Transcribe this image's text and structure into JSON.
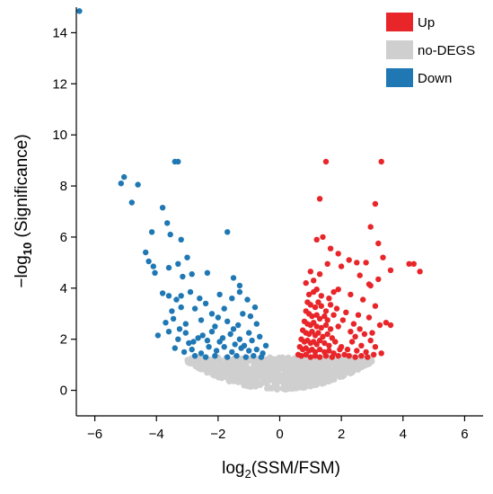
{
  "chart_data": {
    "type": "scatter",
    "title": "",
    "xlabel_main": "log",
    "xlabel_sub": "2",
    "xlabel_rest": "(SSM/FSM)",
    "ylabel_main": "−log",
    "ylabel_sub": "10",
    "ylabel_rest": " (Significance)",
    "xlim": [
      -6.6,
      6.6
    ],
    "ylim": [
      -1.0,
      15.0
    ],
    "xticks": [
      -6,
      -4,
      -2,
      0,
      2,
      4,
      6
    ],
    "xtick_labels": [
      "−6",
      "−4",
      "−2",
      "0",
      "2",
      "4",
      "6"
    ],
    "yticks": [
      0,
      2,
      4,
      6,
      8,
      10,
      12,
      14
    ],
    "ytick_labels": [
      "0",
      "2",
      "4",
      "6",
      "8",
      "10",
      "12",
      "14"
    ],
    "grid": false,
    "legend_position": "top-right",
    "legend": [
      {
        "label": "Up",
        "color": "#e8262a"
      },
      {
        "label": "no-DEGS",
        "color": "#cfcfcf"
      },
      {
        "label": "Down",
        "color": "#1f78b4"
      }
    ],
    "series": [
      {
        "name": "Down",
        "color": "#1f78b4",
        "points": [
          [
            -6.5,
            14.85
          ],
          [
            -5.05,
            8.35
          ],
          [
            -5.15,
            8.1
          ],
          [
            -4.8,
            7.35
          ],
          [
            -4.6,
            8.05
          ],
          [
            -4.15,
            6.2
          ],
          [
            -3.8,
            7.15
          ],
          [
            -3.65,
            6.55
          ],
          [
            -3.4,
            8.95
          ],
          [
            -3.3,
            8.95
          ],
          [
            -3.55,
            6.1
          ],
          [
            -3.2,
            5.9
          ],
          [
            -3.0,
            5.2
          ],
          [
            -4.35,
            5.4
          ],
          [
            -4.25,
            5.05
          ],
          [
            -4.1,
            4.85
          ],
          [
            -4.05,
            4.6
          ],
          [
            -3.6,
            4.8
          ],
          [
            -3.3,
            4.95
          ],
          [
            -2.85,
            4.55
          ],
          [
            -3.15,
            4.45
          ],
          [
            -2.35,
            4.6
          ],
          [
            -1.7,
            6.2
          ],
          [
            -1.5,
            4.4
          ],
          [
            -1.3,
            4.1
          ],
          [
            -3.8,
            3.8
          ],
          [
            -3.6,
            3.7
          ],
          [
            -3.35,
            3.55
          ],
          [
            -3.2,
            3.7
          ],
          [
            -2.9,
            3.85
          ],
          [
            -2.6,
            3.6
          ],
          [
            -2.4,
            3.4
          ],
          [
            -1.95,
            3.75
          ],
          [
            -1.55,
            3.6
          ],
          [
            -1.3,
            3.85
          ],
          [
            -1.05,
            3.55
          ],
          [
            -0.8,
            3.25
          ],
          [
            -3.5,
            3.1
          ],
          [
            -3.2,
            3.25
          ],
          [
            -2.75,
            3.2
          ],
          [
            -2.2,
            3.0
          ],
          [
            -1.8,
            3.2
          ],
          [
            -1.2,
            3.0
          ],
          [
            -0.95,
            2.9
          ],
          [
            -3.7,
            2.65
          ],
          [
            -3.45,
            2.8
          ],
          [
            -3.05,
            2.6
          ],
          [
            -2.55,
            2.75
          ],
          [
            -2.1,
            2.5
          ],
          [
            -1.7,
            2.7
          ],
          [
            -1.35,
            2.55
          ],
          [
            -0.75,
            2.6
          ],
          [
            -3.95,
            2.15
          ],
          [
            -3.6,
            2.3
          ],
          [
            -3.3,
            2.0
          ],
          [
            -3.05,
            2.25
          ],
          [
            -2.8,
            1.9
          ],
          [
            -2.5,
            2.15
          ],
          [
            -2.2,
            2.3
          ],
          [
            -1.95,
            1.9
          ],
          [
            -1.6,
            2.2
          ],
          [
            -1.3,
            2.0
          ],
          [
            -1.0,
            2.25
          ],
          [
            -0.65,
            2.1
          ],
          [
            -3.4,
            1.65
          ],
          [
            -3.1,
            1.5
          ],
          [
            -2.85,
            1.6
          ],
          [
            -2.55,
            1.45
          ],
          [
            -2.3,
            1.7
          ],
          [
            -2.05,
            1.55
          ],
          [
            -1.8,
            1.7
          ],
          [
            -1.55,
            1.5
          ],
          [
            -1.25,
            1.65
          ],
          [
            -1.0,
            1.55
          ],
          [
            -0.75,
            1.6
          ],
          [
            -0.55,
            1.45
          ],
          [
            -2.75,
            1.35
          ],
          [
            -2.4,
            1.3
          ],
          [
            -2.1,
            1.35
          ],
          [
            -1.7,
            1.3
          ],
          [
            -1.4,
            1.35
          ],
          [
            -1.1,
            1.3
          ],
          [
            -0.85,
            1.35
          ],
          [
            -0.6,
            1.3
          ],
          [
            -2.95,
            1.85
          ],
          [
            -2.65,
            2.05
          ],
          [
            -2.35,
            1.95
          ],
          [
            -1.85,
            2.05
          ],
          [
            -1.45,
            1.8
          ],
          [
            -1.15,
            1.75
          ],
          [
            -0.9,
            1.95
          ],
          [
            -0.45,
            1.75
          ],
          [
            -3.25,
            2.4
          ],
          [
            -2.0,
            2.85
          ],
          [
            -1.5,
            2.4
          ]
        ]
      },
      {
        "name": "Up",
        "color": "#e8262a",
        "points": [
          [
            3.3,
            8.95
          ],
          [
            1.5,
            8.95
          ],
          [
            1.3,
            7.5
          ],
          [
            3.1,
            7.3
          ],
          [
            2.95,
            6.4
          ],
          [
            1.4,
            6.0
          ],
          [
            1.2,
            5.9
          ],
          [
            3.2,
            5.75
          ],
          [
            1.65,
            5.55
          ],
          [
            1.9,
            5.35
          ],
          [
            2.25,
            5.1
          ],
          [
            2.5,
            5.0
          ],
          [
            1.55,
            4.95
          ],
          [
            2.0,
            4.85
          ],
          [
            2.8,
            5.0
          ],
          [
            3.35,
            5.2
          ],
          [
            4.2,
            4.95
          ],
          [
            4.35,
            4.95
          ],
          [
            4.55,
            4.65
          ],
          [
            3.6,
            4.7
          ],
          [
            1.0,
            4.65
          ],
          [
            1.3,
            4.55
          ],
          [
            2.6,
            4.5
          ],
          [
            3.2,
            4.35
          ],
          [
            0.85,
            4.2
          ],
          [
            2.9,
            4.15
          ],
          [
            2.95,
            4.1
          ],
          [
            1.1,
            3.85
          ],
          [
            1.6,
            3.6
          ],
          [
            1.9,
            3.95
          ],
          [
            2.3,
            3.75
          ],
          [
            2.7,
            3.55
          ],
          [
            3.1,
            3.3
          ],
          [
            3.45,
            2.65
          ],
          [
            3.6,
            2.55
          ],
          [
            3.25,
            2.55
          ],
          [
            2.9,
            2.85
          ],
          [
            2.55,
            2.95
          ],
          [
            2.15,
            3.05
          ],
          [
            1.85,
            3.2
          ],
          [
            0.9,
            3.45
          ],
          [
            1.0,
            3.35
          ],
          [
            1.15,
            3.25
          ],
          [
            1.25,
            3.45
          ],
          [
            1.35,
            3.3
          ],
          [
            0.85,
            3.1
          ],
          [
            0.95,
            3.0
          ],
          [
            1.05,
            2.9
          ],
          [
            1.2,
            2.95
          ],
          [
            1.3,
            2.8
          ],
          [
            1.45,
            2.9
          ],
          [
            1.55,
            2.75
          ],
          [
            0.8,
            2.7
          ],
          [
            0.9,
            2.6
          ],
          [
            1.0,
            2.55
          ],
          [
            1.1,
            2.65
          ],
          [
            1.2,
            2.5
          ],
          [
            1.35,
            2.45
          ],
          [
            1.5,
            2.55
          ],
          [
            1.65,
            2.4
          ],
          [
            0.75,
            2.35
          ],
          [
            0.85,
            2.25
          ],
          [
            0.95,
            2.2
          ],
          [
            1.05,
            2.3
          ],
          [
            1.15,
            2.15
          ],
          [
            1.25,
            2.25
          ],
          [
            1.4,
            2.1
          ],
          [
            1.55,
            2.2
          ],
          [
            1.7,
            2.05
          ],
          [
            0.7,
            2.0
          ],
          [
            0.8,
            1.9
          ],
          [
            0.9,
            1.95
          ],
          [
            1.0,
            1.85
          ],
          [
            1.1,
            1.9
          ],
          [
            1.2,
            1.8
          ],
          [
            1.3,
            1.95
          ],
          [
            1.45,
            1.85
          ],
          [
            1.6,
            1.75
          ],
          [
            1.8,
            1.9
          ],
          [
            0.65,
            1.7
          ],
          [
            0.75,
            1.6
          ],
          [
            0.85,
            1.65
          ],
          [
            0.95,
            1.55
          ],
          [
            1.05,
            1.6
          ],
          [
            1.15,
            1.5
          ],
          [
            1.3,
            1.6
          ],
          [
            1.45,
            1.5
          ],
          [
            1.6,
            1.55
          ],
          [
            1.75,
            1.45
          ],
          [
            1.95,
            1.6
          ],
          [
            0.6,
            1.4
          ],
          [
            0.7,
            1.35
          ],
          [
            0.85,
            1.4
          ],
          [
            1.0,
            1.3
          ],
          [
            1.15,
            1.35
          ],
          [
            1.3,
            1.3
          ],
          [
            1.5,
            1.35
          ],
          [
            1.7,
            1.3
          ],
          [
            1.9,
            1.35
          ],
          [
            2.1,
            1.4
          ],
          [
            2.0,
            1.7
          ],
          [
            2.2,
            1.6
          ],
          [
            2.35,
            1.9
          ],
          [
            2.5,
            1.55
          ],
          [
            2.65,
            1.75
          ],
          [
            2.8,
            1.5
          ],
          [
            2.95,
            1.95
          ],
          [
            3.1,
            1.7
          ],
          [
            2.3,
            2.3
          ],
          [
            2.45,
            2.1
          ],
          [
            2.6,
            2.4
          ],
          [
            2.75,
            2.2
          ],
          [
            3.0,
            2.25
          ],
          [
            2.25,
            1.35
          ],
          [
            2.45,
            1.3
          ],
          [
            2.65,
            1.35
          ],
          [
            2.85,
            1.3
          ],
          [
            3.05,
            1.4
          ],
          [
            3.3,
            1.45
          ],
          [
            1.9,
            2.5
          ],
          [
            2.05,
            2.75
          ],
          [
            1.75,
            2.95
          ],
          [
            2.4,
            2.6
          ],
          [
            1.65,
            3.35
          ],
          [
            1.5,
            3.1
          ],
          [
            1.35,
            3.7
          ],
          [
            0.95,
            3.75
          ],
          [
            1.2,
            3.95
          ],
          [
            1.75,
            3.85
          ],
          [
            1.1,
            4.3
          ]
        ]
      }
    ]
  }
}
